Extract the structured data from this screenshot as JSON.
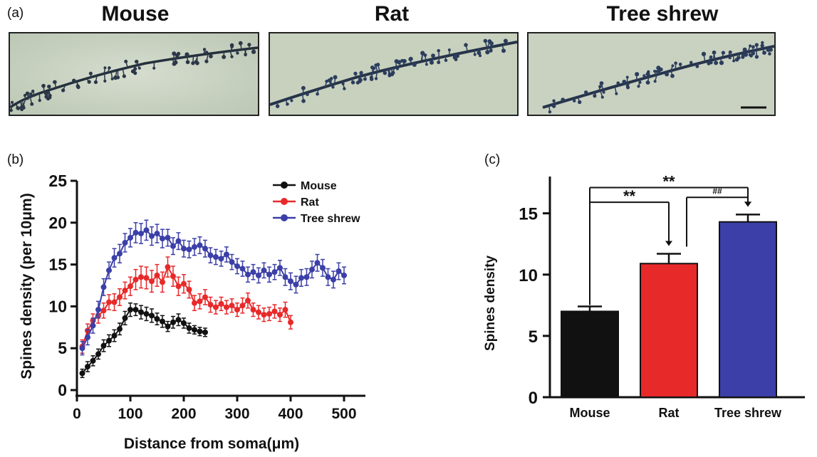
{
  "panels": {
    "a_label": "(a)",
    "b_label": "(b)",
    "c_label": "(c)"
  },
  "image_titles": [
    "Mouse",
    "Rat",
    "Tree shrew"
  ],
  "colors": {
    "mouse": "#111111",
    "rat": "#e8292a",
    "treeshrew": "#3b3fa7",
    "micrograph_bg": "#c9d3c0",
    "dendrite": "#24303c"
  },
  "chart_data": [
    {
      "type": "line",
      "xlabel": "Distance from soma(μm)",
      "ylabel": "Spines density (per 10μm)",
      "xticks": [
        0,
        100,
        200,
        300,
        400,
        500
      ],
      "yticks": [
        0,
        5,
        10,
        15,
        20,
        25
      ],
      "xlim": [
        0,
        540
      ],
      "ylim": [
        0,
        25
      ],
      "legend_position": "top-right",
      "grid": false,
      "series": [
        {
          "name": "Mouse",
          "color": "#111111",
          "x": [
            10,
            20,
            30,
            40,
            50,
            60,
            70,
            80,
            90,
            100,
            110,
            120,
            130,
            140,
            150,
            160,
            170,
            180,
            190,
            200,
            210,
            220,
            230,
            240
          ],
          "y": [
            2.0,
            2.8,
            3.5,
            4.3,
            5.3,
            5.9,
            6.5,
            7.3,
            8.6,
            9.6,
            9.6,
            9.3,
            9.1,
            8.9,
            8.5,
            8.2,
            7.6,
            8.1,
            8.4,
            8.0,
            7.4,
            7.2,
            7.0,
            6.9
          ],
          "err": [
            0.5,
            0.6,
            0.6,
            0.6,
            0.7,
            0.7,
            0.7,
            0.7,
            0.8,
            0.8,
            0.7,
            0.8,
            0.8,
            0.8,
            0.7,
            0.7,
            0.6,
            0.7,
            0.7,
            0.6,
            0.6,
            0.5,
            0.5,
            0.5
          ]
        },
        {
          "name": "Rat",
          "color": "#e8292a",
          "x": [
            10,
            20,
            30,
            40,
            50,
            60,
            70,
            80,
            90,
            100,
            110,
            120,
            130,
            140,
            150,
            160,
            170,
            180,
            190,
            200,
            210,
            220,
            230,
            240,
            250,
            260,
            270,
            280,
            290,
            300,
            310,
            320,
            330,
            340,
            350,
            360,
            370,
            380,
            390,
            400
          ],
          "y": [
            5.2,
            7.1,
            8.3,
            8.9,
            9.5,
            10.5,
            10.5,
            11.1,
            11.9,
            12.4,
            13.2,
            13.5,
            13.4,
            13.0,
            13.7,
            12.9,
            14.7,
            13.6,
            12.4,
            12.7,
            12.0,
            10.4,
            10.6,
            11.1,
            10.2,
            9.9,
            10.3,
            9.9,
            10.1,
            9.6,
            10.1,
            10.7,
            9.6,
            9.3,
            9.0,
            9.1,
            9.4,
            9.0,
            9.6,
            8.1
          ],
          "err": [
            0.8,
            0.8,
            0.8,
            0.9,
            0.9,
            0.9,
            1.0,
            1.0,
            1.0,
            1.1,
            1.2,
            1.3,
            1.3,
            1.3,
            1.3,
            1.2,
            1.2,
            1.2,
            1.1,
            1.1,
            1.0,
            0.9,
            0.9,
            0.9,
            0.9,
            0.8,
            0.8,
            0.8,
            0.8,
            0.8,
            0.9,
            0.9,
            0.8,
            0.8,
            0.8,
            0.8,
            0.8,
            0.8,
            0.9,
            0.8
          ]
        },
        {
          "name": "Tree shrew",
          "color": "#3b3fa7",
          "x": [
            10,
            20,
            30,
            40,
            50,
            60,
            70,
            80,
            90,
            100,
            110,
            120,
            130,
            140,
            150,
            160,
            170,
            180,
            190,
            200,
            210,
            220,
            230,
            240,
            250,
            260,
            270,
            280,
            290,
            300,
            310,
            320,
            330,
            340,
            350,
            360,
            370,
            380,
            390,
            400,
            410,
            420,
            430,
            440,
            450,
            460,
            470,
            480,
            490,
            500
          ],
          "y": [
            5.0,
            6.3,
            7.7,
            9.6,
            12.3,
            14.3,
            15.8,
            16.3,
            17.6,
            18.2,
            18.8,
            18.7,
            19.1,
            18.4,
            18.7,
            18.1,
            18.2,
            17.2,
            17.8,
            16.9,
            16.8,
            17.1,
            17.3,
            16.9,
            16.1,
            15.9,
            15.7,
            16.2,
            15.3,
            14.8,
            14.5,
            13.8,
            14.1,
            13.7,
            14.3,
            13.8,
            14.1,
            14.6,
            13.5,
            13.0,
            12.6,
            13.4,
            13.5,
            14.4,
            15.2,
            14.6,
            13.5,
            13.2,
            14.2,
            13.7
          ],
          "err": [
            0.8,
            0.9,
            0.9,
            1.0,
            1.0,
            1.0,
            1.1,
            1.1,
            1.1,
            1.1,
            1.2,
            1.2,
            1.2,
            1.1,
            1.1,
            1.1,
            1.0,
            1.0,
            1.0,
            1.0,
            1.0,
            1.0,
            1.0,
            1.0,
            0.9,
            0.9,
            0.9,
            0.9,
            0.9,
            0.9,
            0.9,
            0.9,
            0.9,
            0.9,
            0.9,
            0.9,
            0.9,
            0.9,
            1.0,
            1.0,
            1.0,
            1.0,
            1.0,
            1.0,
            1.0,
            1.0,
            1.0,
            1.0,
            1.0,
            1.0
          ]
        }
      ]
    },
    {
      "type": "bar",
      "ylabel": "Spines density",
      "categories": [
        "Mouse",
        "Rat",
        "Tree shrew"
      ],
      "values": [
        7.0,
        10.9,
        14.3
      ],
      "errors": [
        0.4,
        0.8,
        0.6
      ],
      "colors": [
        "#111111",
        "#e8292a",
        "#3b3fa7"
      ],
      "yticks": [
        0,
        5,
        10,
        15
      ],
      "ylim": [
        0,
        18
      ],
      "significance": [
        {
          "from": "Mouse",
          "to": "Rat",
          "label": "**"
        },
        {
          "from": "Mouse",
          "to": "Tree shrew",
          "label": "**"
        },
        {
          "from": "Rat",
          "to": "Tree shrew",
          "label": "##"
        }
      ]
    }
  ]
}
